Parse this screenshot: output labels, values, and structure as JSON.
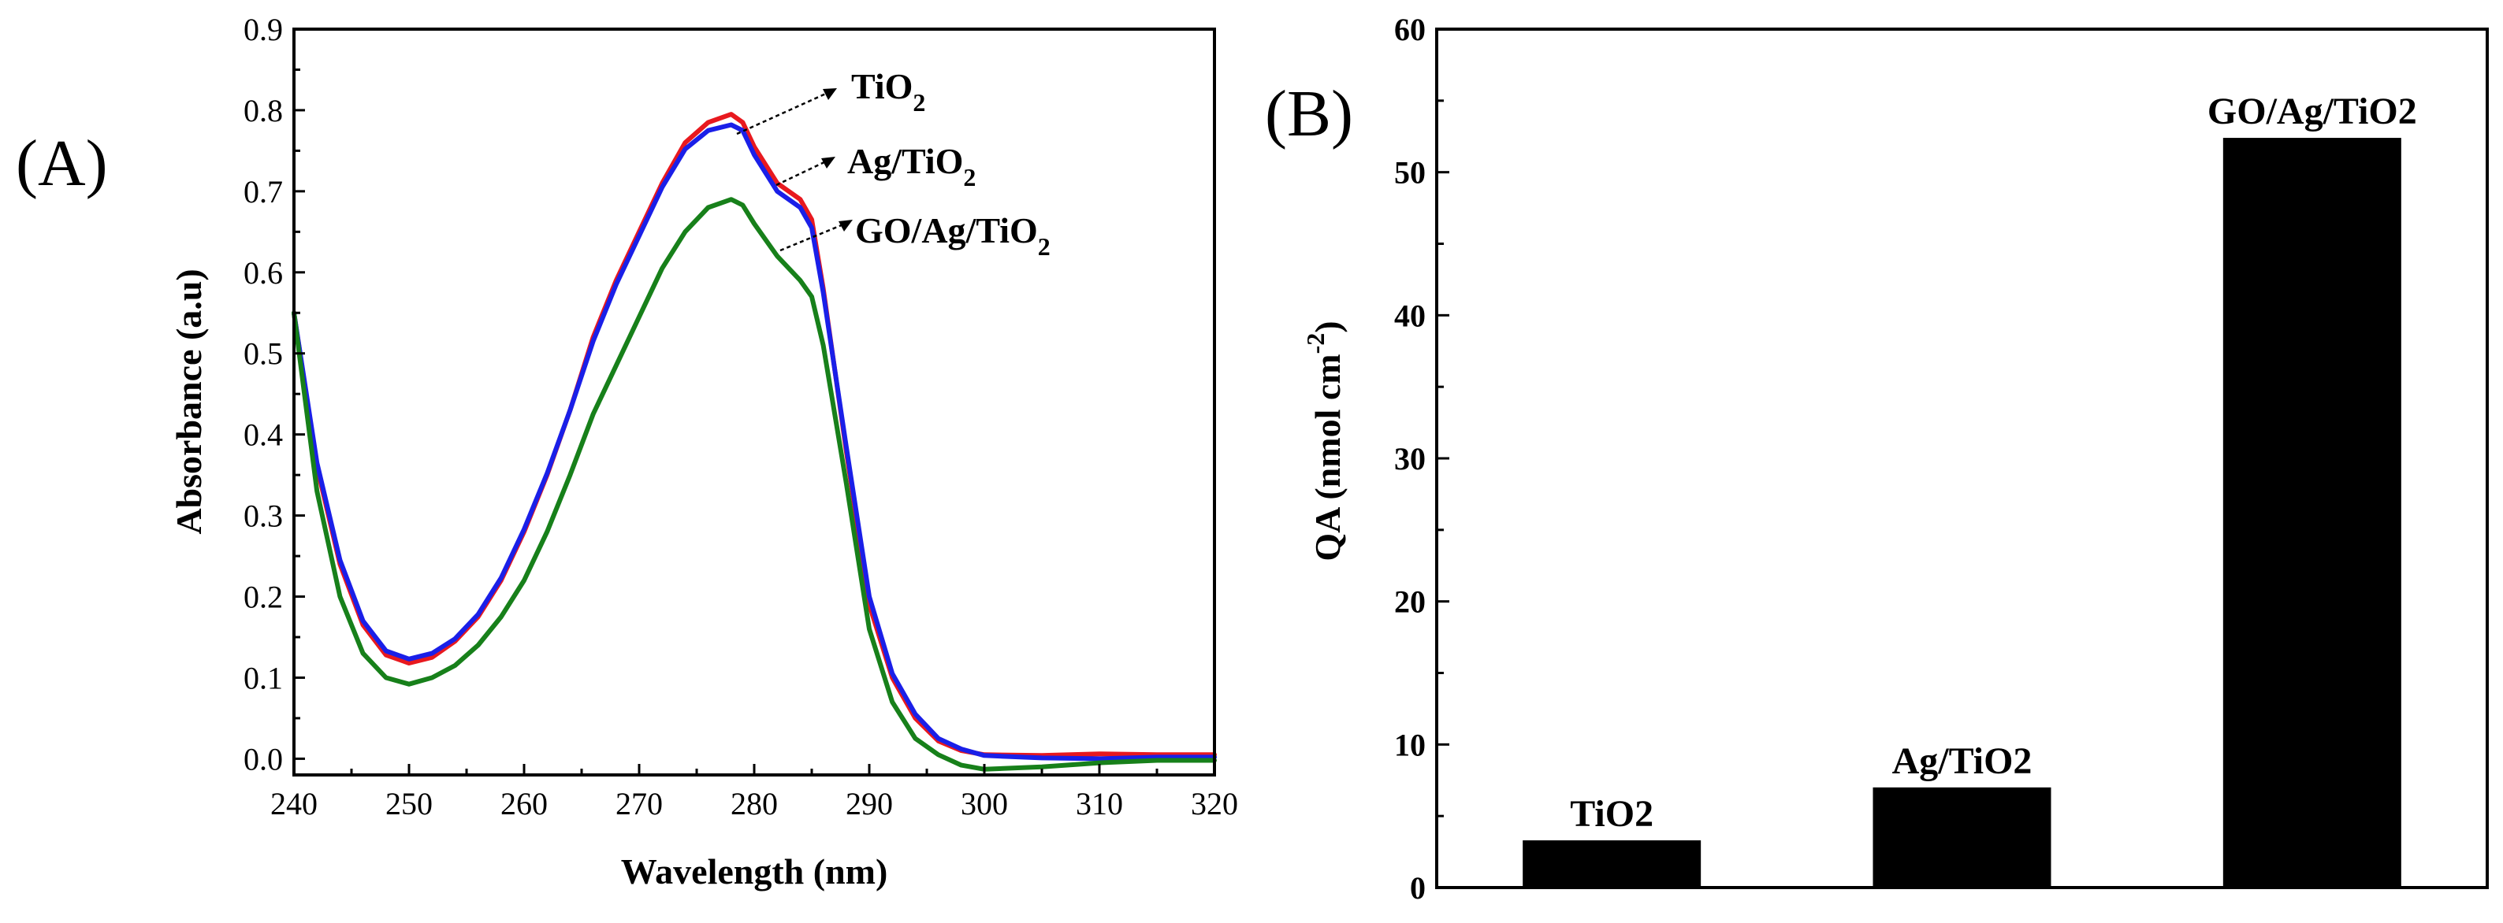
{
  "chart_data": [
    {
      "panel": "(A)",
      "type": "line",
      "xlabel": "Wavelength (nm)",
      "ylabel": "Absorbance (a.u)",
      "xlim": [
        240,
        320
      ],
      "ylim": [
        -0.02,
        0.9
      ],
      "xticks": [
        240,
        250,
        260,
        270,
        280,
        290,
        300,
        310,
        320
      ],
      "xtick_labels": [
        "240",
        "250",
        "260",
        "270",
        "280",
        "290",
        "300",
        "310",
        "320"
      ],
      "yticks": [
        0.0,
        0.1,
        0.2,
        0.3,
        0.4,
        0.5,
        0.6,
        0.7,
        0.8,
        0.9
      ],
      "ytick_labels": [
        "0.0",
        "0.1",
        "0.2",
        "0.3",
        "0.4",
        "0.5",
        "0.6",
        "0.7",
        "0.8",
        "0.9"
      ],
      "grid": false,
      "series": [
        {
          "name": "TiO2",
          "label_main": "TiO",
          "label_sub": "2",
          "color": "#e8191f",
          "x": [
            240,
            242,
            244,
            246,
            248,
            250,
            252,
            254,
            256,
            258,
            260,
            262,
            264,
            266,
            268,
            270,
            272,
            274,
            276,
            278,
            279,
            280,
            282,
            284,
            285,
            286,
            288,
            290,
            292,
            294,
            296,
            298,
            300,
            305,
            310,
            315,
            320
          ],
          "y": [
            0.55,
            0.36,
            0.24,
            0.165,
            0.128,
            0.118,
            0.125,
            0.145,
            0.175,
            0.22,
            0.28,
            0.35,
            0.43,
            0.52,
            0.59,
            0.65,
            0.71,
            0.76,
            0.785,
            0.795,
            0.785,
            0.755,
            0.71,
            0.69,
            0.665,
            0.58,
            0.38,
            0.19,
            0.1,
            0.05,
            0.022,
            0.01,
            0.005,
            0.004,
            0.006,
            0.005,
            0.005
          ]
        },
        {
          "name": "Ag/TiO2",
          "label_main": "Ag/TiO",
          "label_sub": "2",
          "color": "#1a1fe8",
          "x": [
            240,
            242,
            244,
            246,
            248,
            250,
            252,
            254,
            256,
            258,
            260,
            262,
            264,
            266,
            268,
            270,
            272,
            274,
            276,
            278,
            279,
            280,
            282,
            284,
            285,
            286,
            288,
            290,
            292,
            294,
            296,
            298,
            300,
            305,
            310,
            315,
            320
          ],
          "y": [
            0.55,
            0.365,
            0.245,
            0.17,
            0.133,
            0.123,
            0.13,
            0.148,
            0.178,
            0.223,
            0.283,
            0.352,
            0.43,
            0.515,
            0.585,
            0.645,
            0.705,
            0.752,
            0.775,
            0.782,
            0.775,
            0.745,
            0.7,
            0.68,
            0.655,
            0.575,
            0.385,
            0.2,
            0.105,
            0.055,
            0.025,
            0.012,
            0.004,
            0.001,
            0.0,
            0.002,
            0.002
          ]
        },
        {
          "name": "GO/Ag/TiO2",
          "label_main": "GO/Ag/TiO",
          "label_sub": "2",
          "color": "#17801a",
          "x": [
            240,
            242,
            244,
            246,
            248,
            250,
            252,
            254,
            256,
            258,
            260,
            262,
            264,
            266,
            268,
            270,
            272,
            274,
            276,
            278,
            279,
            280,
            282,
            284,
            285,
            286,
            288,
            290,
            292,
            294,
            296,
            298,
            300,
            305,
            310,
            315,
            320
          ],
          "y": [
            0.55,
            0.33,
            0.2,
            0.13,
            0.1,
            0.092,
            0.1,
            0.115,
            0.14,
            0.175,
            0.22,
            0.28,
            0.35,
            0.425,
            0.485,
            0.545,
            0.605,
            0.65,
            0.68,
            0.69,
            0.683,
            0.66,
            0.62,
            0.59,
            0.57,
            0.51,
            0.34,
            0.16,
            0.07,
            0.025,
            0.005,
            -0.008,
            -0.013,
            -0.01,
            -0.005,
            -0.002,
            -0.002
          ]
        }
      ]
    },
    {
      "panel": "(B)",
      "type": "bar",
      "ylabel_main": "QA (nmol cm",
      "ylabel_sup": "-2",
      "ylabel_close": ")",
      "ylim": [
        0,
        60
      ],
      "yticks": [
        0,
        10,
        20,
        30,
        40,
        50,
        60
      ],
      "ytick_labels": [
        "0",
        "10",
        "20",
        "30",
        "40",
        "50",
        "60"
      ],
      "grid": false,
      "categories": [
        "TiO2",
        "Ag/TiO2",
        "GO/Ag/TiO2"
      ],
      "values": [
        3.3,
        7.0,
        52.4
      ],
      "bar_color": "#000000"
    }
  ]
}
